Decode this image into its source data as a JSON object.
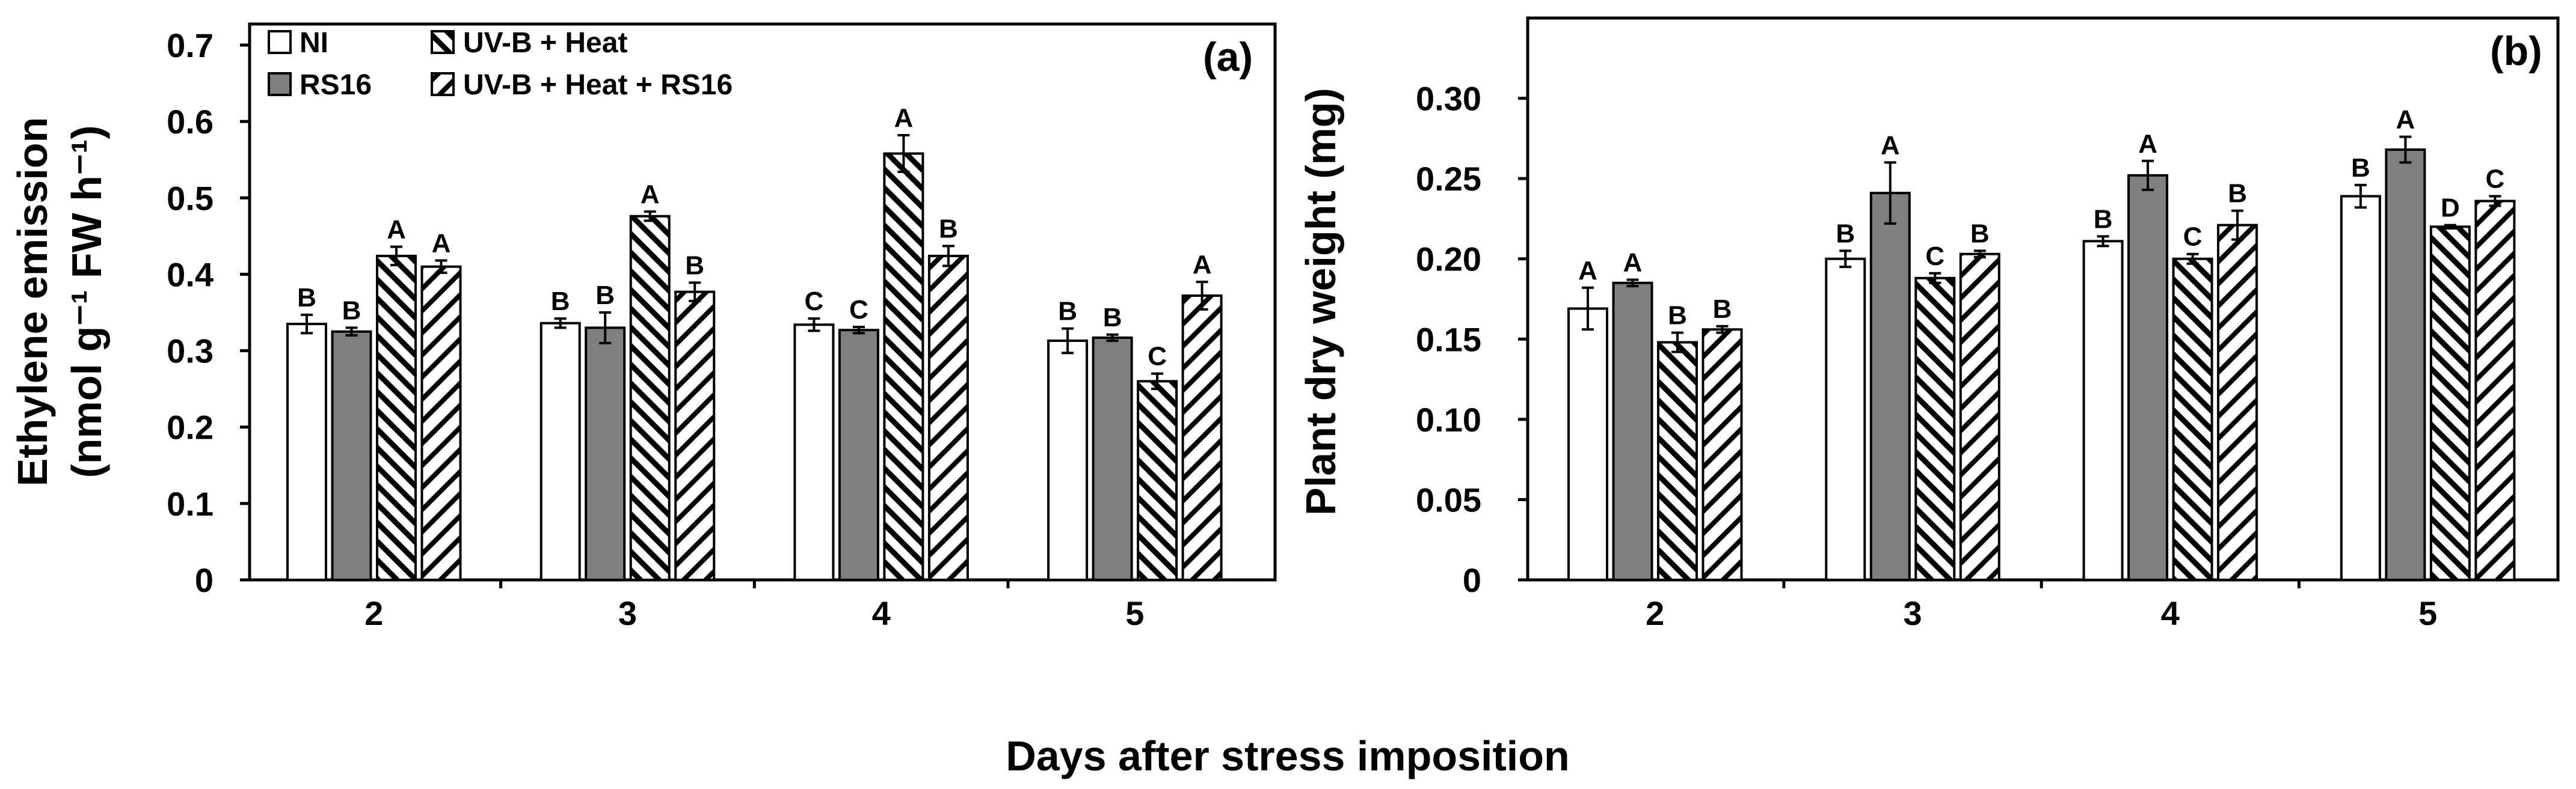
{
  "figure": {
    "xlabel": "Days after stress imposition"
  },
  "legend": {
    "items": [
      {
        "label": "NI",
        "fill": "white"
      },
      {
        "label": "RS16",
        "fill": "gray"
      },
      {
        "label": "UV-B + Heat",
        "fill": "backslash"
      },
      {
        "label": "UV-B + Heat + RS16",
        "fill": "slash"
      }
    ]
  },
  "colors": {
    "rs16_fill": "#7f7f7f",
    "axis": "#000000",
    "background": "#ffffff"
  },
  "chart_data": [
    {
      "type": "bar",
      "panel_tag": "(a)",
      "title": "",
      "xlabel": "",
      "ylabel_line1": "Ethylene emission",
      "ylabel_line2": "(nmol g⁻¹ FW h⁻¹)",
      "ylim": [
        0,
        0.7
      ],
      "yticks": [
        0,
        0.1,
        0.2,
        0.3,
        0.4,
        0.5,
        0.6,
        0.7
      ],
      "ytick_labels": [
        "0",
        "0.1",
        "0.2",
        "0.3",
        "0.4",
        "0.5",
        "0.6",
        "0.7"
      ],
      "categories": [
        "2",
        "3",
        "4",
        "5"
      ],
      "legend_position": "top-left",
      "series": [
        {
          "name": "NI",
          "values": [
            0.335,
            0.336,
            0.334,
            0.313
          ],
          "errors": [
            0.012,
            0.006,
            0.008,
            0.016
          ],
          "letters": [
            "B",
            "B",
            "C",
            "B"
          ]
        },
        {
          "name": "RS16",
          "values": [
            0.325,
            0.33,
            0.327,
            0.317
          ],
          "errors": [
            0.005,
            0.02,
            0.004,
            0.004
          ],
          "letters": [
            "B",
            "B",
            "C",
            "B"
          ]
        },
        {
          "name": "UV-B + Heat",
          "values": [
            0.424,
            0.476,
            0.558,
            0.26
          ],
          "errors": [
            0.012,
            0.006,
            0.024,
            0.01
          ],
          "letters": [
            "A",
            "A",
            "A",
            "C"
          ]
        },
        {
          "name": "UV-B + Heat + RS16",
          "values": [
            0.41,
            0.377,
            0.424,
            0.372
          ],
          "errors": [
            0.008,
            0.012,
            0.013,
            0.018
          ],
          "letters": [
            "A",
            "B",
            "B",
            "A"
          ]
        }
      ]
    },
    {
      "type": "bar",
      "panel_tag": "(b)",
      "title": "",
      "xlabel": "",
      "ylabel": "Plant dry weight (mg)",
      "ylim": [
        0,
        0.3
      ],
      "ydomain_max": 0.35,
      "yticks": [
        0,
        0.05,
        0.1,
        0.15,
        0.2,
        0.25,
        0.3
      ],
      "ytick_labels": [
        "0",
        "0.05",
        "0.10",
        "0.15",
        "0.20",
        "0.25",
        "0.30"
      ],
      "categories": [
        "2",
        "3",
        "4",
        "5"
      ],
      "series": [
        {
          "name": "NI",
          "values": [
            0.169,
            0.2,
            0.211,
            0.239
          ],
          "errors": [
            0.013,
            0.005,
            0.003,
            0.007
          ],
          "letters": [
            "A",
            "B",
            "B",
            "B"
          ]
        },
        {
          "name": "RS16",
          "values": [
            0.185,
            0.241,
            0.252,
            0.268
          ],
          "errors": [
            0.002,
            0.019,
            0.009,
            0.008
          ],
          "letters": [
            "A",
            "A",
            "A",
            "A"
          ]
        },
        {
          "name": "UV-B + Heat",
          "values": [
            0.148,
            0.188,
            0.2,
            0.22
          ],
          "errors": [
            0.006,
            0.003,
            0.003,
            0.001
          ],
          "letters": [
            "B",
            "C",
            "C",
            "D"
          ]
        },
        {
          "name": "UV-B + Heat + RS16",
          "values": [
            0.156,
            0.203,
            0.221,
            0.236
          ],
          "errors": [
            0.002,
            0.002,
            0.009,
            0.003
          ],
          "letters": [
            "B",
            "B",
            "B",
            "C"
          ]
        }
      ]
    }
  ]
}
